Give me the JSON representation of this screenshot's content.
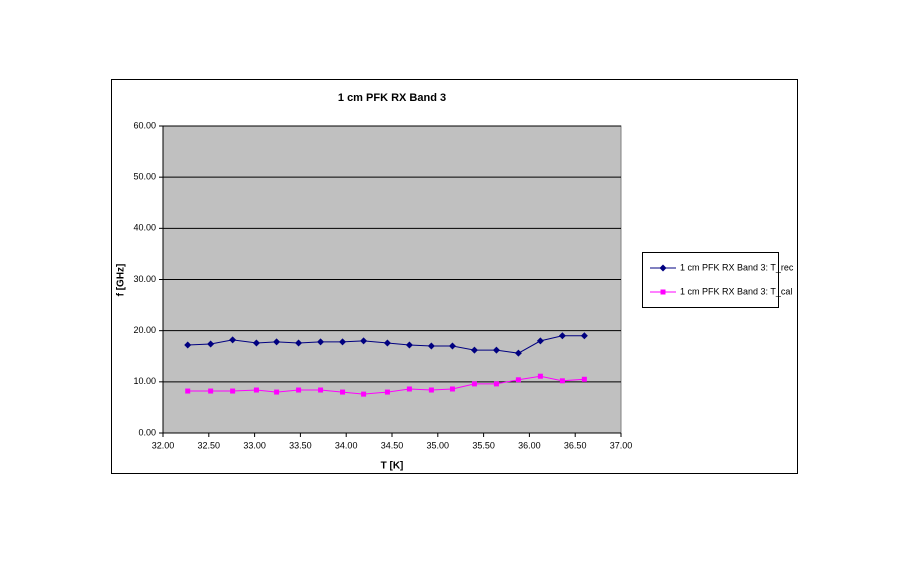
{
  "chart_data": {
    "type": "line",
    "title": "1 cm PFK RX Band 3",
    "x_label": "T [K]",
    "y_label": "f [GHz]",
    "x": [
      32.27,
      32.52,
      32.76,
      33.02,
      33.24,
      33.48,
      33.72,
      33.96,
      34.19,
      34.45,
      34.69,
      34.93,
      35.16,
      35.4,
      35.64,
      35.88,
      36.12,
      36.36,
      36.6
    ],
    "series": [
      {
        "name": "1 cm PFK RX Band 3: T_rec",
        "color": "#000080",
        "marker": "diamond",
        "values": [
          17.2,
          17.4,
          18.2,
          17.6,
          17.8,
          17.6,
          17.8,
          17.8,
          18.0,
          17.6,
          17.2,
          17.0,
          17.0,
          16.2,
          16.2,
          15.6,
          18.0,
          19.0,
          19.0
        ]
      },
      {
        "name": "1 cm PFK RX Band 3: T_cal",
        "color": "#ff00ff",
        "marker": "square",
        "values": [
          8.2,
          8.2,
          8.2,
          8.4,
          8.0,
          8.4,
          8.4,
          8.0,
          7.6,
          8.0,
          8.6,
          8.4,
          8.6,
          9.6,
          9.6,
          10.4,
          11.1,
          10.2,
          10.5
        ]
      }
    ],
    "xlim": [
      32,
      37
    ],
    "xticks": [
      {
        "value": 32,
        "label": "32.00"
      },
      {
        "value": 32.5,
        "label": "32.50"
      },
      {
        "value": 33,
        "label": "33.00"
      },
      {
        "value": 33.5,
        "label": "33.50"
      },
      {
        "value": 34,
        "label": "34.00"
      },
      {
        "value": 34.5,
        "label": "34.50"
      },
      {
        "value": 35,
        "label": "35.00"
      },
      {
        "value": 35.5,
        "label": "35.50"
      },
      {
        "value": 36,
        "label": "36.00"
      },
      {
        "value": 36.5,
        "label": "36.50"
      },
      {
        "value": 37,
        "label": "37.00"
      }
    ],
    "ylim": [
      0,
      60
    ],
    "yticks": [
      {
        "value": 0,
        "label": "0.00"
      },
      {
        "value": 10,
        "label": "10.00"
      },
      {
        "value": 20,
        "label": "20.00"
      },
      {
        "value": 30,
        "label": "30.00"
      },
      {
        "value": 40,
        "label": "40.00"
      },
      {
        "value": 50,
        "label": "50.00"
      },
      {
        "value": 60,
        "label": "60.00"
      }
    ],
    "grid": true,
    "plot_background": "#c0c0c0",
    "legend_position": "right"
  }
}
